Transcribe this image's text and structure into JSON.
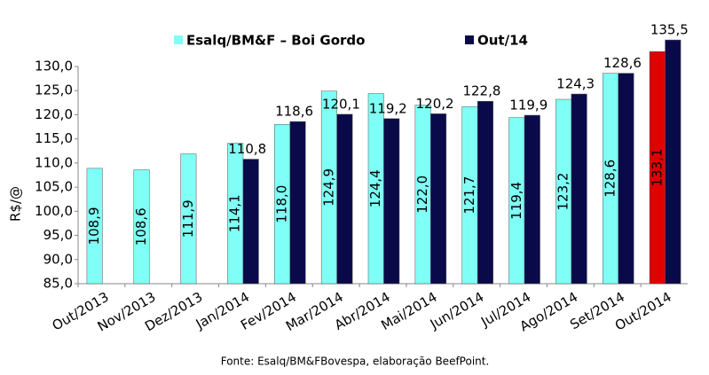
{
  "chart_data": {
    "type": "bar",
    "y_label": "R$/@",
    "source": "Fonte: Esalq/BM&FBovespa, elaboração BeefPoint.",
    "categories": [
      "Out/2013",
      "Nov/2013",
      "Dez/2013",
      "Jan/2014",
      "Fev/2014",
      "Mar/2014",
      "Abr/2014",
      "Mai/2014",
      "Jun/2014",
      "Jul/2014",
      "Ago/2014",
      "Set/2014",
      "Out/2014"
    ],
    "series": [
      {
        "name": "Esalq/BM&F – Boi Gordo",
        "color": "#7ffff5",
        "colors": [
          "#7ffff5",
          "#7ffff5",
          "#7ffff5",
          "#7ffff5",
          "#7ffff5",
          "#7ffff5",
          "#7ffff5",
          "#7ffff5",
          "#7ffff5",
          "#7ffff5",
          "#7ffff5",
          "#7ffff5",
          "#e00000"
        ],
        "values": [
          108.9,
          108.6,
          111.9,
          114.1,
          118.0,
          124.9,
          124.4,
          122.0,
          121.7,
          119.4,
          123.2,
          128.6,
          133.1
        ],
        "value_labels": [
          "108,9",
          "108,6",
          "111,9",
          "114,1",
          "118,0",
          "124,9",
          "124,4",
          "122,0",
          "121,7",
          "119,4",
          "123,2",
          "128,6",
          "133,1"
        ]
      },
      {
        "name": "Out/14",
        "color": "#0a0a4a",
        "values": [
          null,
          null,
          null,
          110.8,
          118.6,
          120.1,
          119.2,
          120.2,
          122.8,
          119.9,
          124.3,
          128.6,
          135.5
        ],
        "value_labels": [
          null,
          null,
          null,
          "110,8",
          "118,6",
          "120,1",
          "119,2",
          "120,2",
          "122,8",
          "119,9",
          "124,3",
          "128,6",
          "135,5"
        ]
      }
    ],
    "ylim": [
      85,
      130
    ],
    "yticks": [
      {
        "value": 85,
        "label": "85,0"
      },
      {
        "value": 90,
        "label": "90,0"
      },
      {
        "value": 95,
        "label": "95,0"
      },
      {
        "value": 100,
        "label": "100,0"
      },
      {
        "value": 105,
        "label": "105,0"
      },
      {
        "value": 110,
        "label": "110,0"
      },
      {
        "value": 115,
        "label": "115,0"
      },
      {
        "value": 120,
        "label": "120,0"
      },
      {
        "value": 125,
        "label": "125,0"
      },
      {
        "value": 130,
        "label": "130,0"
      }
    ],
    "grid": false
  }
}
